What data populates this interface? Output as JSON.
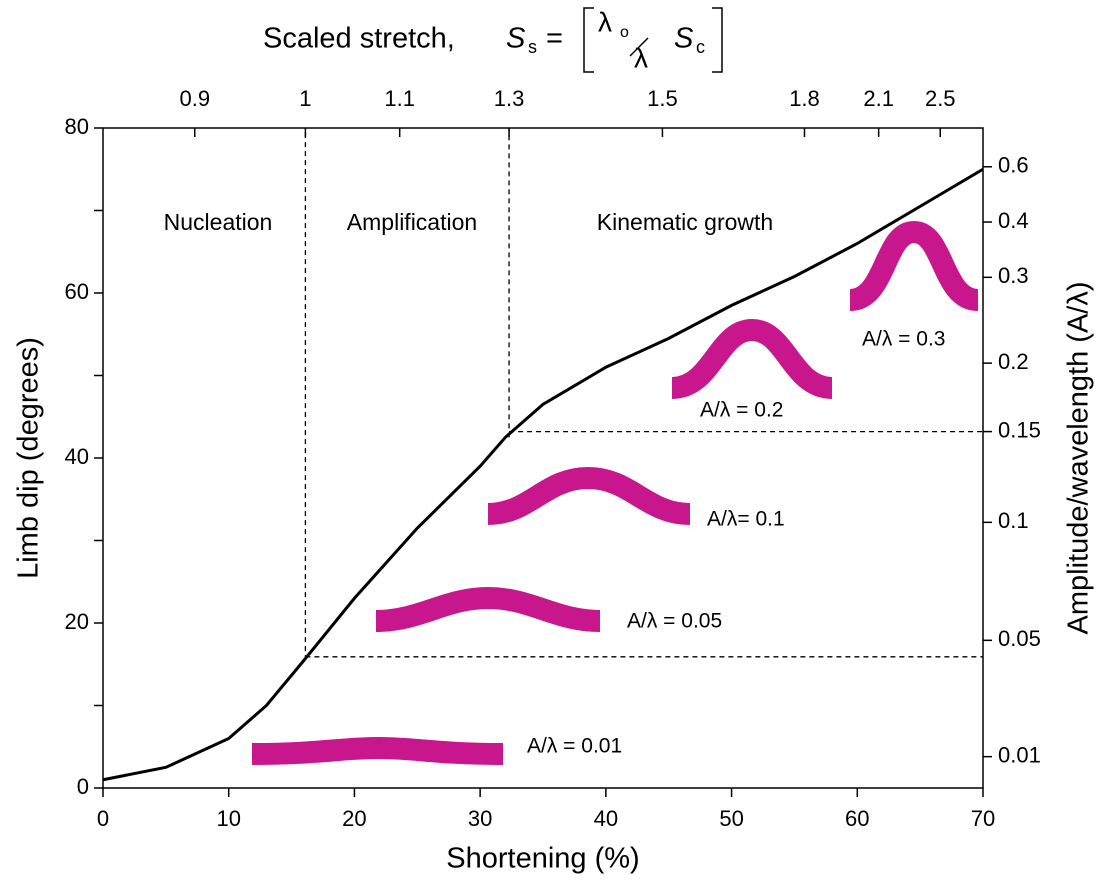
{
  "chart_data": {
    "type": "line",
    "xlabel": "Shortening (%)",
    "ylabel": "Limb dip (degrees)",
    "y2label": "Amplitude/wavelength (A/λ)",
    "x2label": "Scaled stretch,",
    "formula": {
      "s_main": "S",
      "s_sub": "s",
      "eq": "=",
      "num": "λ",
      "num_sub": "o",
      "den": "λ",
      "c_main": "S",
      "c_sub": "c"
    },
    "x": [
      0,
      5,
      10,
      13,
      16,
      20,
      25,
      30,
      32,
      35,
      40,
      45,
      50,
      55,
      60,
      65,
      70
    ],
    "series": [
      {
        "color": "#000000",
        "values": [
          1,
          2.5,
          6,
          10,
          15.5,
          23,
          31.5,
          39,
          42.5,
          46.5,
          51,
          54.5,
          58.5,
          62,
          66,
          70.5,
          75
        ]
      }
    ],
    "xlim": [
      0,
      70
    ],
    "ylim": [
      0,
      80
    ],
    "xticks": [
      0,
      10,
      20,
      30,
      40,
      50,
      60,
      70
    ],
    "yticks": [
      0,
      20,
      40,
      60,
      80
    ],
    "yminor": [
      10,
      30,
      50,
      70
    ],
    "x2ticks": [
      0.9,
      1,
      1.1,
      1.3,
      1.5,
      1.8,
      2.1,
      2.5
    ],
    "x2tick_positions": [
      7.3,
      16.1,
      23.6,
      32.3,
      44.5,
      55.8,
      61.7,
      66.6
    ],
    "y2ticks": [
      0.6,
      0.4,
      0.3,
      0.2,
      0.15,
      0.1,
      0.05,
      0.01
    ],
    "y2tick_positions": [
      75.3,
      68.6,
      61.9,
      51.5,
      43.2,
      32.2,
      17.9,
      3.8
    ],
    "vlines": [
      {
        "x": 16.1,
        "y0": 15.5
      },
      {
        "x": 32.3,
        "y0": 42.5
      }
    ],
    "hlines": [
      {
        "y": 15.9,
        "x0": 16.1
      },
      {
        "y": 43.2,
        "x0": 32.3
      }
    ],
    "regions": [
      "Nucleation",
      "Amplification",
      "Kinematic growth"
    ],
    "annotations": [
      "A/λ = 0.01",
      "A/λ = 0.05",
      "A/λ= 0.1",
      "A/λ = 0.2",
      "A/λ = 0.3"
    ]
  }
}
